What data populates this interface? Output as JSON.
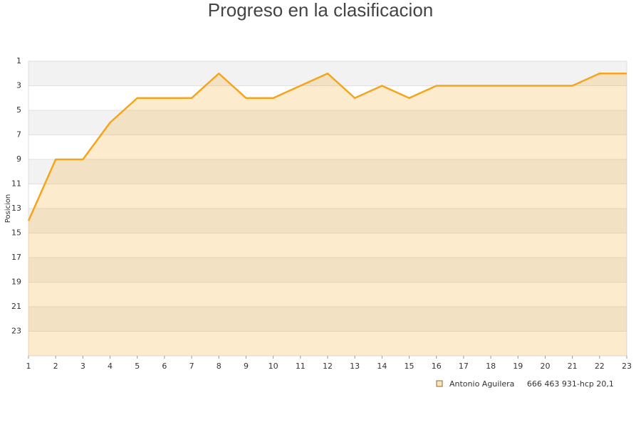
{
  "chart_data": {
    "type": "area",
    "title": "Progreso en la clasificacion",
    "y_label": "Posicion",
    "x": [
      1,
      2,
      3,
      4,
      5,
      6,
      7,
      8,
      9,
      10,
      11,
      12,
      13,
      14,
      15,
      16,
      17,
      18,
      19,
      20,
      21,
      22,
      23
    ],
    "series": [
      {
        "name": "Antonio Aguilera     666 463 931-hcp 20,1",
        "color": "#f5a41c",
        "values": [
          14,
          9,
          9,
          6,
          4,
          4,
          4,
          2,
          4,
          4,
          3,
          2,
          4,
          3,
          4,
          3,
          3,
          3,
          3,
          3,
          3,
          2,
          2
        ]
      }
    ],
    "xlim": [
      1,
      23
    ],
    "xticks": [
      1,
      2,
      3,
      4,
      5,
      6,
      7,
      8,
      9,
      10,
      11,
      12,
      13,
      14,
      15,
      16,
      17,
      18,
      19,
      20,
      21,
      22,
      23
    ],
    "ylim": [
      1,
      25
    ],
    "yticks": [
      1,
      3,
      5,
      7,
      9,
      11,
      13,
      15,
      17,
      19,
      21,
      23
    ],
    "y_inverted": true,
    "grid": true
  }
}
